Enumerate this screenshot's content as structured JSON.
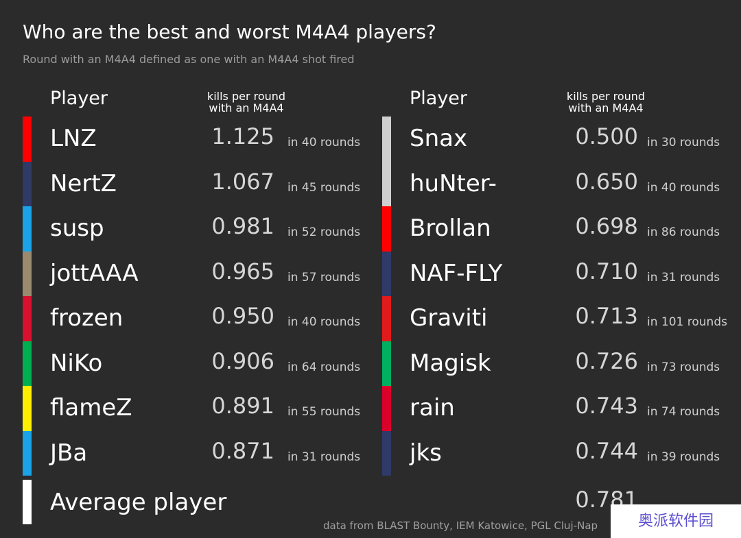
{
  "title": "Who are the best and worst M4A4 players?",
  "subtitle": "Round with an M4A4 defined as one with an M4A4 shot fired",
  "tables": [
    {
      "player_header": "Player",
      "metric_header": [
        "kills per round",
        "with an M4A4"
      ],
      "rows": [
        {
          "name": "LNZ",
          "kpr": "1.125",
          "rounds": "in 40 rounds",
          "color": "#ff0000"
        },
        {
          "name": "NertZ",
          "kpr": "1.067",
          "rounds": "in 45 rounds",
          "color": "#2f3a66"
        },
        {
          "name": "susp",
          "kpr": "0.981",
          "rounds": "in 52 rounds",
          "color": "#1aa3e8"
        },
        {
          "name": "jottAAA",
          "kpr": "0.965",
          "rounds": "in 57 rounds",
          "color": "#9a8b70"
        },
        {
          "name": "frozen",
          "kpr": "0.950",
          "rounds": "in 40 rounds",
          "color": "#d9102e"
        },
        {
          "name": "NiKo",
          "kpr": "0.906",
          "rounds": "in 64 rounds",
          "color": "#00b050"
        },
        {
          "name": "flameZ",
          "kpr": "0.891",
          "rounds": "in 55 rounds",
          "color": "#ffee00"
        },
        {
          "name": "JBa",
          "kpr": "0.871",
          "rounds": "in 31 rounds",
          "color": "#1aa3e8"
        }
      ]
    },
    {
      "player_header": "Player",
      "metric_header": [
        "kills per round",
        "with an M4A4"
      ],
      "rows": [
        {
          "name": "Snax",
          "kpr": "0.500",
          "rounds": "in 30 rounds",
          "color": "#d0d0d0"
        },
        {
          "name": "huNter-",
          "kpr": "0.650",
          "rounds": "in 40 rounds",
          "color": "#d0d0d0"
        },
        {
          "name": "Brollan",
          "kpr": "0.698",
          "rounds": "in 86 rounds",
          "color": "#ff0000"
        },
        {
          "name": "NAF-FLY",
          "kpr": "0.710",
          "rounds": "in 31 rounds",
          "color": "#2f3a66"
        },
        {
          "name": "Graviti",
          "kpr": "0.713",
          "rounds": "in 101 rounds",
          "color": "#e01b1b"
        },
        {
          "name": "Magisk",
          "kpr": "0.726",
          "rounds": "in 73 rounds",
          "color": "#00b060"
        },
        {
          "name": "rain",
          "kpr": "0.743",
          "rounds": "in 74 rounds",
          "color": "#d9002a"
        },
        {
          "name": "jks",
          "kpr": "0.744",
          "rounds": "in 39 rounds",
          "color": "#2f3a66"
        }
      ]
    }
  ],
  "average": {
    "name": "Average player",
    "kpr": "0.781",
    "color": "#ffffff"
  },
  "footer": "data from BLAST Bounty, IEM Katowice, PGL Cluj-Nap",
  "watermark": "奥派软件园"
}
